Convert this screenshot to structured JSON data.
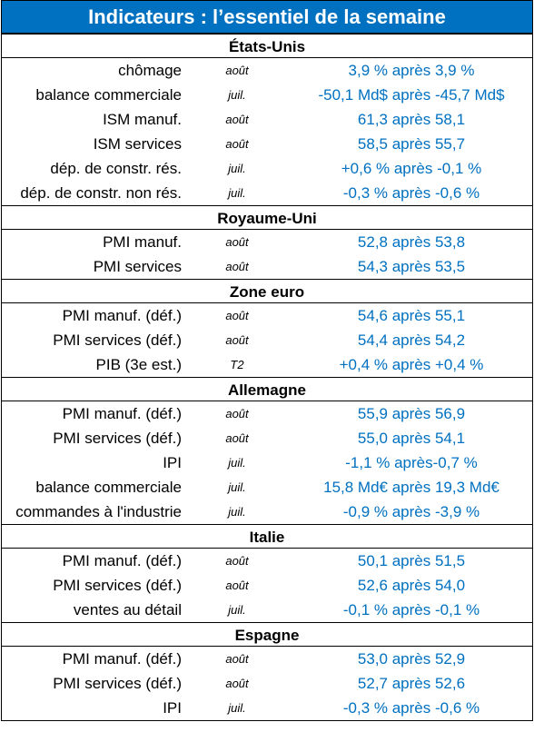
{
  "title": "Indicateurs : l’essentiel de la semaine",
  "sections": [
    {
      "name": "États-Unis",
      "rows": [
        {
          "label": "chômage",
          "period": "août",
          "value": "3,9 % après 3,9 %"
        },
        {
          "label": "balance commerciale",
          "period": "juil.",
          "value": "-50,1 Md$ après -45,7 Md$"
        },
        {
          "label": "ISM manuf.",
          "period": "août",
          "value": "61,3 après 58,1"
        },
        {
          "label": "ISM services",
          "period": "août",
          "value": "58,5 après 55,7"
        },
        {
          "label": "dép. de constr. rés.",
          "period": "juil.",
          "value": "+0,6 % après -0,1 %"
        },
        {
          "label": "dép. de constr. non rés.",
          "period": "juil.",
          "value": "-0,3 % après -0,6 %"
        }
      ]
    },
    {
      "name": "Royaume-Uni",
      "rows": [
        {
          "label": "PMI manuf.",
          "period": "août",
          "value": "52,8 après 53,8"
        },
        {
          "label": "PMI services",
          "period": "août",
          "value": "54,3 après 53,5"
        }
      ]
    },
    {
      "name": "Zone euro",
      "rows": [
        {
          "label": "PMI manuf. (déf.)",
          "period": "août",
          "value": "54,6 après 55,1"
        },
        {
          "label": "PMI services (déf.)",
          "period": "août",
          "value": "54,4 après 54,2"
        },
        {
          "label": "PIB (3e est.)",
          "period": "T2",
          "value": "+0,4 % après +0,4 %"
        }
      ]
    },
    {
      "name": "Allemagne",
      "rows": [
        {
          "label": "PMI manuf. (déf.)",
          "period": "août",
          "value": "55,9 après 56,9"
        },
        {
          "label": "PMI services (déf.)",
          "period": "août",
          "value": "55,0 après 54,1"
        },
        {
          "label": "IPI",
          "period": "juil.",
          "value": "-1,1 % après-0,7 %"
        },
        {
          "label": "balance commerciale",
          "period": "juil.",
          "value": "15,8 Md€ après 19,3 Md€"
        },
        {
          "label": "commandes à l'industrie",
          "period": "juil.",
          "value": "-0,9 % après -3,9 %"
        }
      ]
    },
    {
      "name": "Italie",
      "rows": [
        {
          "label": "PMI manuf. (déf.)",
          "period": "août",
          "value": "50,1 après 51,5"
        },
        {
          "label": "PMI services (déf.)",
          "period": "août",
          "value": "52,6 après 54,0"
        },
        {
          "label": "ventes au détail",
          "period": "juil.",
          "value": "-0,1 % après -0,1 %"
        }
      ]
    },
    {
      "name": "Espagne",
      "rows": [
        {
          "label": "PMI manuf. (déf.)",
          "period": "août",
          "value": "53,0 après 52,9"
        },
        {
          "label": "PMI services (déf.)",
          "period": "août",
          "value": "52,7 après 52,6"
        },
        {
          "label": "IPI",
          "period": "juil.",
          "value": "-0,3 % après -0,6 %"
        }
      ]
    }
  ],
  "colors": {
    "header_bg": "#0070c0",
    "value_text": "#0070c0"
  }
}
